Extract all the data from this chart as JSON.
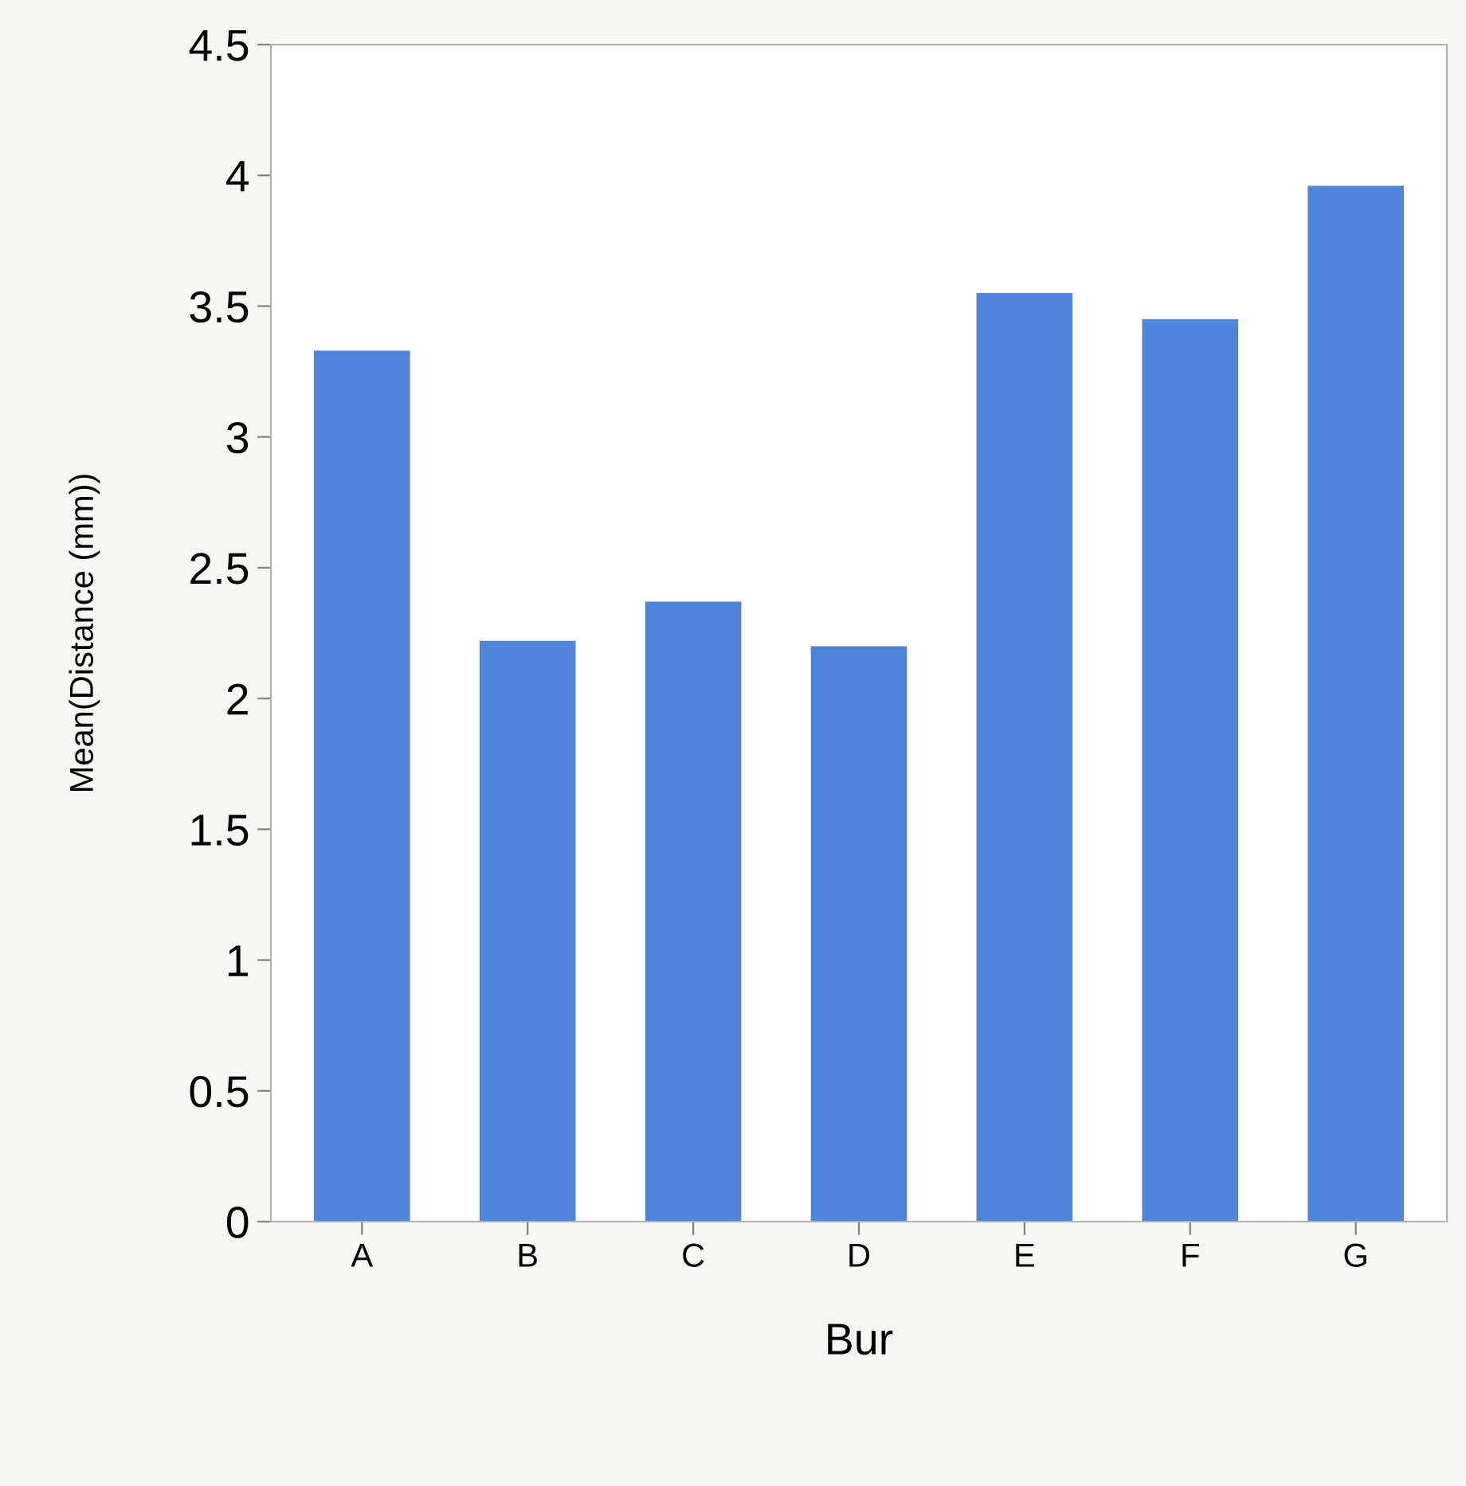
{
  "chart_data": {
    "type": "bar",
    "xlabel": "Bur",
    "ylabel": "Mean(Distance (mm))",
    "categories": [
      "A",
      "B",
      "C",
      "D",
      "E",
      "F",
      "G"
    ],
    "values": [
      3.33,
      2.22,
      2.37,
      2.2,
      3.55,
      3.45,
      3.96
    ],
    "color": "#5084db",
    "ylim": [
      0,
      4.5
    ],
    "yticks": [
      0,
      0.5,
      1,
      1.5,
      2,
      2.5,
      3,
      3.5,
      4,
      4.5
    ],
    "grid": false
  }
}
